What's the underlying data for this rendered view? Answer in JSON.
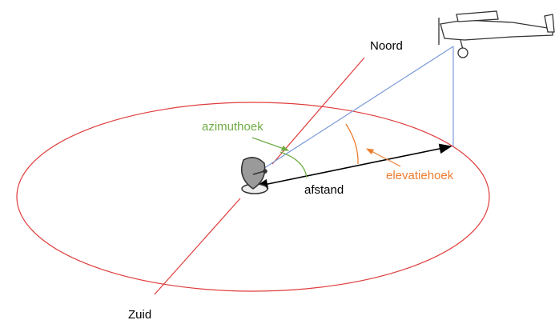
{
  "labels": {
    "north": "Noord",
    "south": "Zuid",
    "azimuth": "azimuthoek",
    "elevation": "elevatiehoek",
    "distance": "afstand"
  }
}
